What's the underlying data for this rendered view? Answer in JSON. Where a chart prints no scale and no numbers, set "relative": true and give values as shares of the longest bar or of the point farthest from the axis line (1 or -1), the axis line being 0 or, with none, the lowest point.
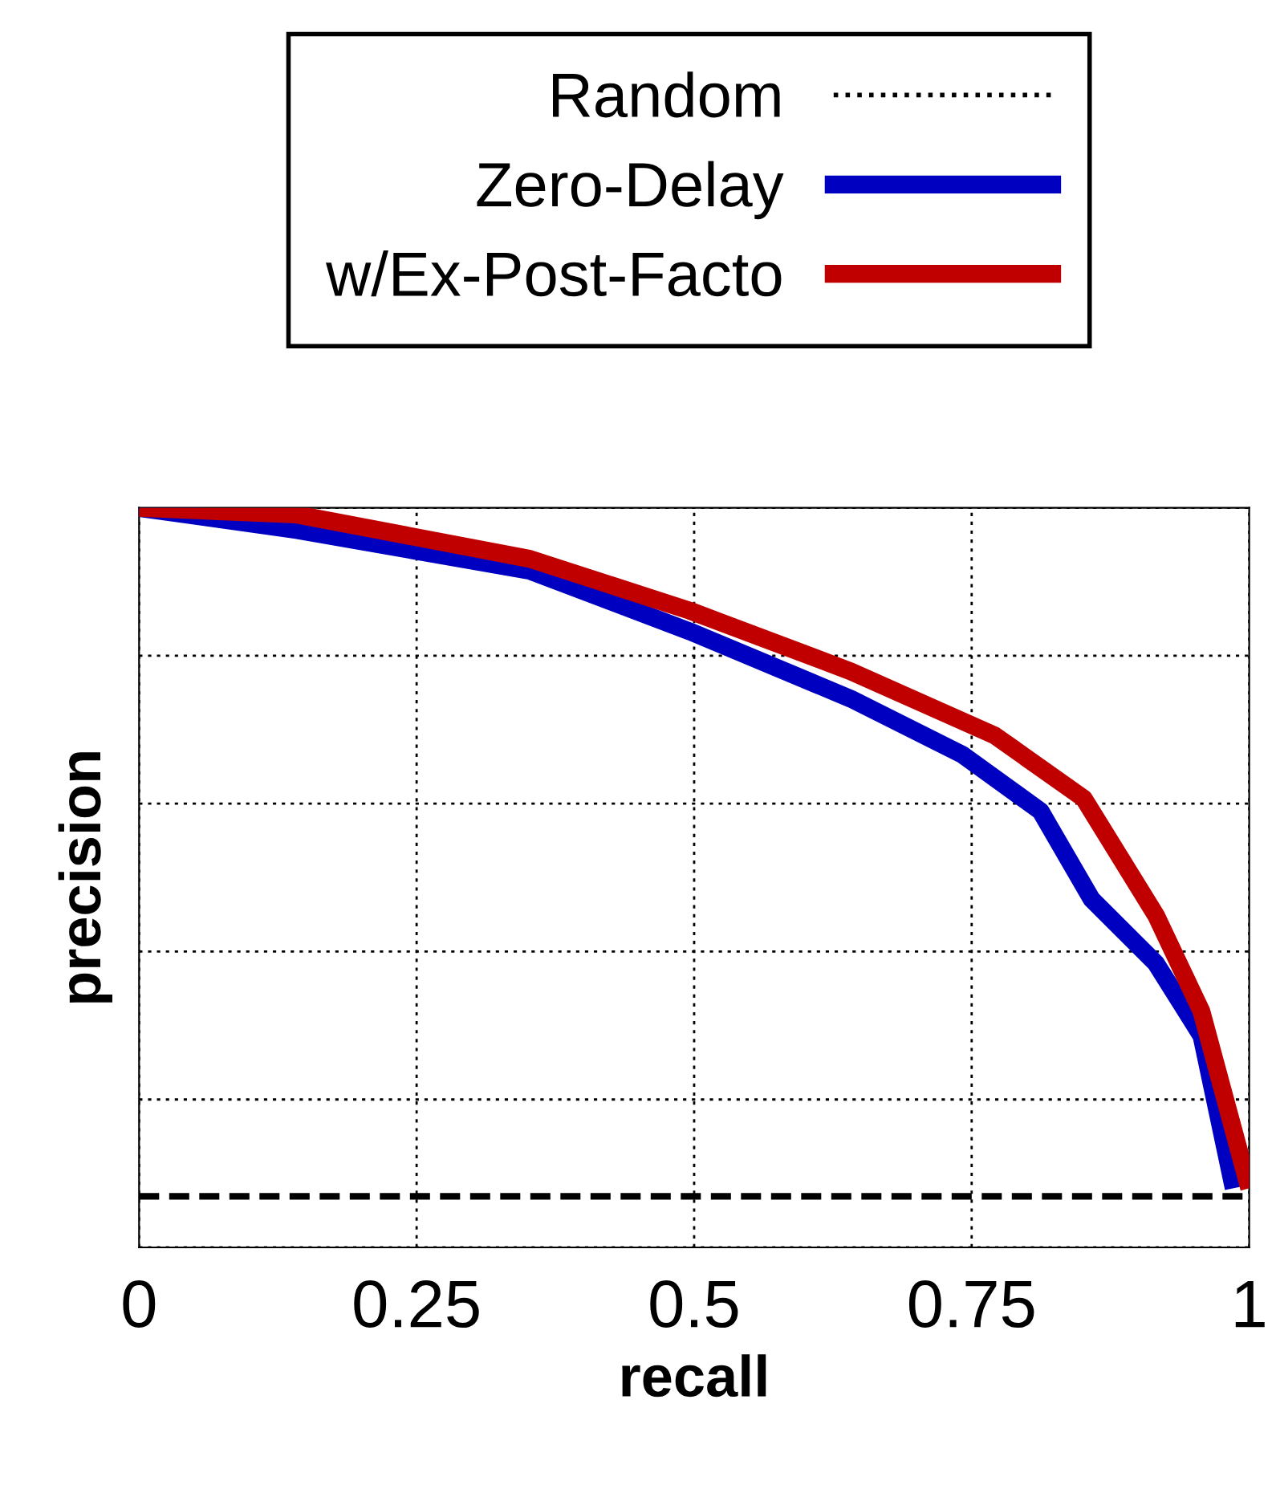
{
  "chart_data": {
    "type": "line",
    "xlabel": "recall",
    "ylabel": "precision",
    "relative": true,
    "xlim": [
      0,
      1
    ],
    "xticks": [
      0,
      0.25,
      0.5,
      0.75,
      1
    ],
    "grid": true,
    "legend": "top",
    "line_style": "solid",
    "marker": "none",
    "ref_lines": [
      {
        "axis": "y",
        "value": 0.069,
        "label": "Random",
        "color": "#000000",
        "line_style": "dashed"
      }
    ],
    "series": [
      {
        "name": "Zero-Delay",
        "color": "#0000c0",
        "x": [
          0,
          0.142,
          0.352,
          0.496,
          0.641,
          0.742,
          0.812,
          0.858,
          0.916,
          0.957,
          0.986
        ],
        "values": [
          1.0,
          0.97,
          0.915,
          0.833,
          0.742,
          0.666,
          0.59,
          0.471,
          0.384,
          0.286,
          0.08
        ]
      },
      {
        "name": "w/Ex-Post-Facto",
        "color": "#c00000",
        "x": [
          0,
          0.142,
          0.352,
          0.496,
          0.641,
          0.771,
          0.851,
          0.916,
          0.957,
          1.0
        ],
        "values": [
          1.0,
          0.991,
          0.931,
          0.861,
          0.779,
          0.692,
          0.607,
          0.449,
          0.319,
          0.08
        ]
      }
    ]
  }
}
